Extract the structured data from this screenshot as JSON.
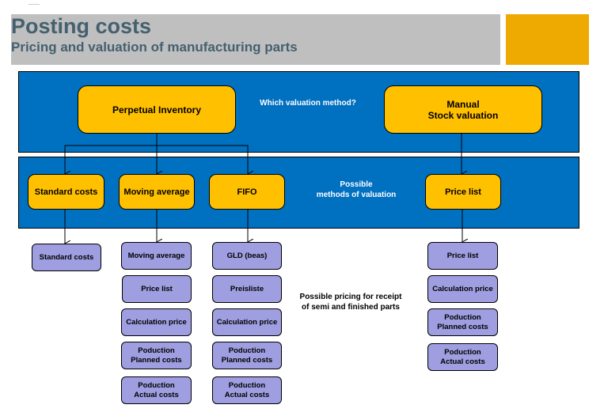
{
  "header": {
    "title": "Posting costs",
    "subtitle": "Pricing and valuation of manufacturing parts",
    "accent": "#eeaa00"
  },
  "top_panel": {
    "left": "Perpetual Inventory",
    "question": "Which valuation method?",
    "right": "Manual\nStock valuation"
  },
  "methods_panel": {
    "label": "Possible\nmethods of valuation",
    "methods": [
      "Standard costs",
      "Moving average",
      "FIFO",
      "Price list"
    ]
  },
  "pricing_label": "Possible pricing for receipt\n of  semi and finished parts",
  "columns": [
    [
      "Standard costs"
    ],
    [
      "Moving average",
      "Price list",
      "Calculation price",
      "Poduction\nPlanned costs",
      "Poduction\nActual costs"
    ],
    [
      "GLD (beas)",
      "Preisliste",
      "Calculation price",
      "Poduction\nPlanned costs",
      "Poduction\nActual costs"
    ],
    [
      "Price list",
      "Calculation price",
      "Poduction\nPlanned costs",
      "Poduction\nActual costs"
    ]
  ],
  "colors": {
    "panel": "#0070c0",
    "method_box": "#ffc000",
    "pricing_box": "#9e9ee0"
  }
}
